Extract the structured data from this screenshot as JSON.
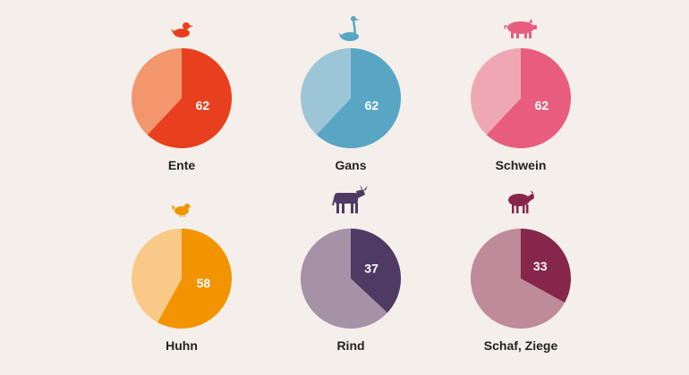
{
  "chart_data": {
    "type": "pie",
    "panels": [
      {
        "label": "Ente",
        "value": 62,
        "remainder": 38,
        "value_color": "#e8401e",
        "remainder_color": "#f2976d",
        "icon": "duck-icon"
      },
      {
        "label": "Gans",
        "value": 62,
        "remainder": 38,
        "value_color": "#58a6c4",
        "remainder_color": "#9dc5d8",
        "icon": "goose-icon"
      },
      {
        "label": "Schwein",
        "value": 62,
        "remainder": 38,
        "value_color": "#e85d7d",
        "remainder_color": "#f0a7b4",
        "icon": "pig-icon"
      },
      {
        "label": "Huhn",
        "value": 58,
        "remainder": 42,
        "value_color": "#f29400",
        "remainder_color": "#f8c987",
        "icon": "chicken-icon"
      },
      {
        "label": "Rind",
        "value": 37,
        "remainder": 63,
        "value_color": "#4e3a63",
        "remainder_color": "#a592a7",
        "icon": "cow-icon"
      },
      {
        "label": "Schaf, Ziege",
        "value": 33,
        "remainder": 67,
        "value_color": "#85264a",
        "remainder_color": "#bf8a99",
        "icon": "sheep-icon"
      }
    ]
  }
}
